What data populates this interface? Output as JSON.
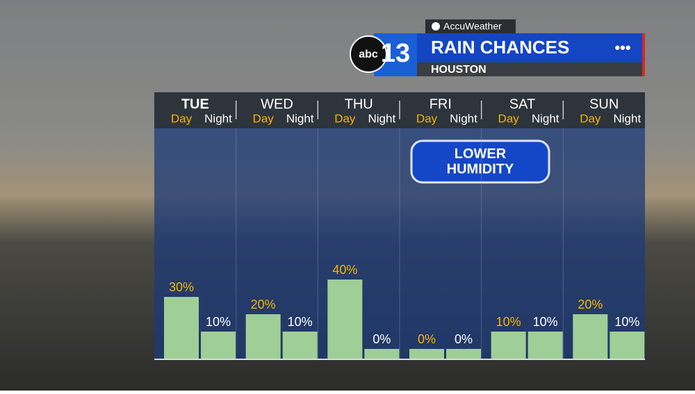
{
  "brand": "AccuWeather",
  "station": {
    "network": "abc",
    "channel": "13"
  },
  "chart_data": {
    "type": "bar",
    "title": "RAIN CHANCES",
    "subtitle": "HOUSTON",
    "categories": [
      "TUE",
      "WED",
      "THU",
      "FRI",
      "SAT",
      "SUN"
    ],
    "series": [
      {
        "name": "Day",
        "color": "#9fce97",
        "label_color": "#f5b400",
        "values": [
          30,
          20,
          40,
          0,
          10,
          20
        ],
        "value_labels": [
          "30%",
          "20%",
          "40%",
          "0%",
          "10%",
          "20%"
        ]
      },
      {
        "name": "Night",
        "color": "#9fce97",
        "label_color": "#ffffff",
        "values": [
          10,
          10,
          0,
          0,
          10,
          10
        ],
        "value_labels": [
          "10%",
          "10%",
          "0%",
          "0%",
          "10%",
          "10%"
        ]
      }
    ],
    "annotation": "LOWER HUMIDITY"
  }
}
